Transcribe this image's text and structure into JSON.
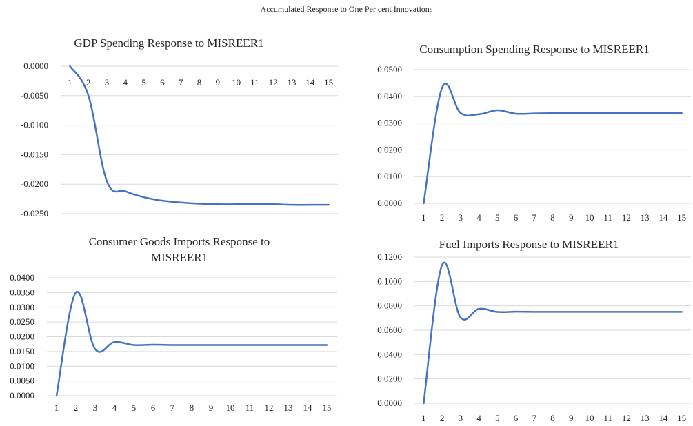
{
  "page": {
    "title": "Accumulated Response to One Per cent Innovations"
  },
  "chart_data": [
    {
      "type": "line",
      "title": "GDP Spending Response to MISREER1",
      "title_lines": [
        "GDP Spending Response to MISREER1"
      ],
      "x": [
        1,
        2,
        3,
        4,
        5,
        6,
        7,
        8,
        9,
        10,
        11,
        12,
        13,
        14,
        15
      ],
      "x_labels": [
        "1",
        "2",
        "3",
        "4",
        "5",
        "6",
        "7",
        "8",
        "9",
        "10",
        "11",
        "12",
        "13",
        "14",
        "15"
      ],
      "series": [
        {
          "values": [
            0.0,
            -0.005,
            -0.0195,
            -0.0212,
            -0.0222,
            -0.0228,
            -0.0231,
            -0.0233,
            -0.0234,
            -0.0234,
            -0.0234,
            -0.0234,
            -0.0235,
            -0.0235,
            -0.0235
          ],
          "color": "#4472c4"
        }
      ],
      "ylim": [
        -0.025,
        0.0
      ],
      "yticks": [
        0.0,
        -0.005,
        -0.01,
        -0.015,
        -0.02,
        -0.025
      ],
      "ytick_labels": [
        "0.0000",
        "-0.0050",
        "-0.0100",
        "-0.0150",
        "-0.0200",
        "-0.0250"
      ],
      "x_axis_position": "top",
      "grid": true
    },
    {
      "type": "line",
      "title": "Consumption Spending Response to MISREER1",
      "title_lines": [
        "Consumption Spending Response to MISREER1"
      ],
      "x": [
        1,
        2,
        3,
        4,
        5,
        6,
        7,
        8,
        9,
        10,
        11,
        12,
        13,
        14,
        15
      ],
      "x_labels": [
        "1",
        "2",
        "3",
        "4",
        "5",
        "6",
        "7",
        "8",
        "9",
        "10",
        "11",
        "12",
        "13",
        "14",
        "15"
      ],
      "series": [
        {
          "values": [
            0.0,
            0.0432,
            0.0338,
            0.0333,
            0.0348,
            0.0335,
            0.0336,
            0.0337,
            0.0337,
            0.0337,
            0.0337,
            0.0337,
            0.0337,
            0.0337,
            0.0337
          ],
          "color": "#4472c4"
        }
      ],
      "ylim": [
        0.0,
        0.05
      ],
      "yticks": [
        0.0,
        0.01,
        0.02,
        0.03,
        0.04,
        0.05
      ],
      "ytick_labels": [
        "0.0000",
        "0.0100",
        "0.0200",
        "0.0300",
        "0.0400",
        "0.0500"
      ],
      "x_axis_position": "bottom",
      "grid": true
    },
    {
      "type": "line",
      "title": "Consumer Goods Imports Response to MISREER1",
      "title_lines": [
        "Consumer Goods Imports Response to",
        "MISREER1"
      ],
      "x": [
        1,
        2,
        3,
        4,
        5,
        6,
        7,
        8,
        9,
        10,
        11,
        12,
        13,
        14,
        15
      ],
      "x_labels": [
        "1",
        "2",
        "3",
        "4",
        "5",
        "6",
        "7",
        "8",
        "9",
        "10",
        "11",
        "12",
        "13",
        "14",
        "15"
      ],
      "series": [
        {
          "values": [
            0.0,
            0.035,
            0.0158,
            0.0182,
            0.0172,
            0.0173,
            0.0172,
            0.0172,
            0.0172,
            0.0172,
            0.0172,
            0.0172,
            0.0172,
            0.0172,
            0.0172
          ],
          "color": "#4472c4"
        }
      ],
      "ylim": [
        0.0,
        0.04
      ],
      "yticks": [
        0.0,
        0.005,
        0.01,
        0.015,
        0.02,
        0.025,
        0.03,
        0.035,
        0.04
      ],
      "ytick_labels": [
        "0.0000",
        "0.0050",
        "0.0100",
        "0.0150",
        "0.0200",
        "0.0250",
        "0.0300",
        "0.0350",
        "0.0400"
      ],
      "x_axis_position": "bottom",
      "grid": true
    },
    {
      "type": "line",
      "title": "Fuel Imports Response to MISREER1",
      "title_lines": [
        "Fuel Imports Response to MISREER1"
      ],
      "x": [
        1,
        2,
        3,
        4,
        5,
        6,
        7,
        8,
        9,
        10,
        11,
        12,
        13,
        14,
        15
      ],
      "x_labels": [
        "1",
        "2",
        "3",
        "4",
        "5",
        "6",
        "7",
        "8",
        "9",
        "10",
        "11",
        "12",
        "13",
        "14",
        "15"
      ],
      "series": [
        {
          "values": [
            0.0,
            0.1135,
            0.0705,
            0.0775,
            0.075,
            0.0752,
            0.0751,
            0.0751,
            0.0751,
            0.0751,
            0.0751,
            0.0751,
            0.0751,
            0.0751,
            0.0751
          ],
          "color": "#4472c4"
        }
      ],
      "ylim": [
        0.0,
        0.12
      ],
      "yticks": [
        0.0,
        0.02,
        0.04,
        0.06,
        0.08,
        0.1,
        0.12
      ],
      "ytick_labels": [
        "0.0000",
        "0.0200",
        "0.0400",
        "0.0600",
        "0.0800",
        "0.1000",
        "0.1200"
      ],
      "x_axis_position": "bottom",
      "grid": true
    }
  ]
}
